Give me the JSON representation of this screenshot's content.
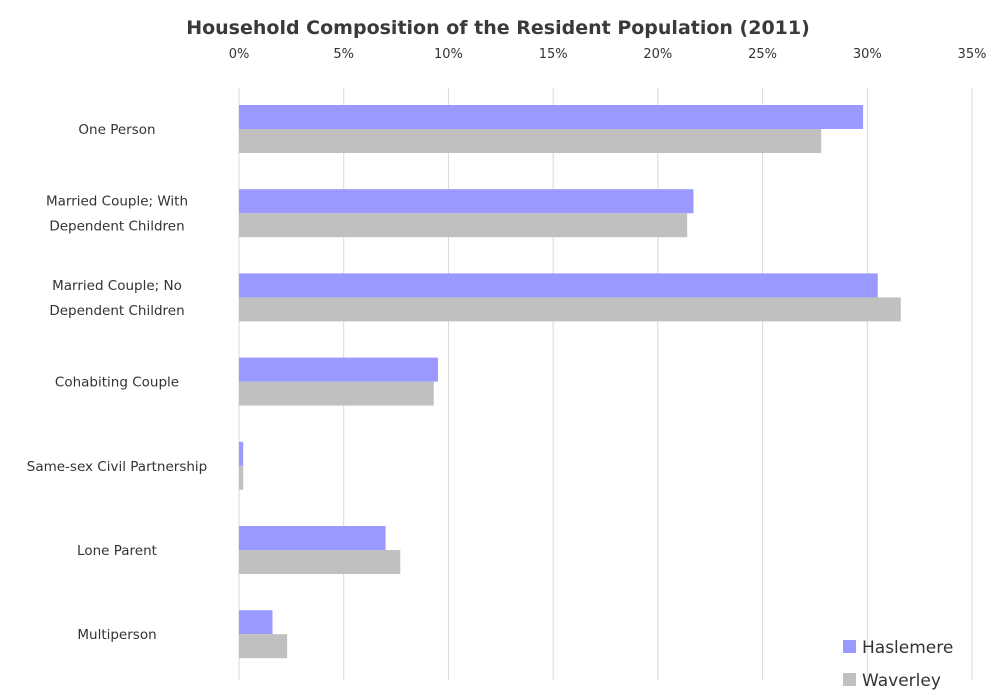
{
  "chart_data": {
    "type": "bar",
    "orientation": "horizontal",
    "title": "Household Composition of the Resident Population (2011)",
    "xlabel": "",
    "ylabel": "",
    "xlim": [
      0,
      35
    ],
    "x_ticks": [
      "0%",
      "5%",
      "10%",
      "15%",
      "20%",
      "25%",
      "30%",
      "35%"
    ],
    "x_axis_position": "top",
    "grid": true,
    "legend_position": "bottom-right",
    "categories": [
      [
        "One Person"
      ],
      [
        "Married Couple; With",
        "Dependent Children"
      ],
      [
        "Married Couple; No",
        "Dependent Children"
      ],
      [
        "Cohabiting Couple"
      ],
      [
        "Same-sex Civil Partnership"
      ],
      [
        "Lone Parent"
      ],
      [
        "Multiperson"
      ]
    ],
    "series": [
      {
        "name": "Haslemere",
        "color": "#9999ff",
        "values": [
          29.8,
          21.7,
          30.5,
          9.5,
          0.2,
          7.0,
          1.6
        ]
      },
      {
        "name": "Waverley",
        "color": "#c0c0c0",
        "values": [
          27.8,
          21.4,
          31.6,
          9.3,
          0.2,
          7.7,
          2.3
        ]
      }
    ]
  }
}
